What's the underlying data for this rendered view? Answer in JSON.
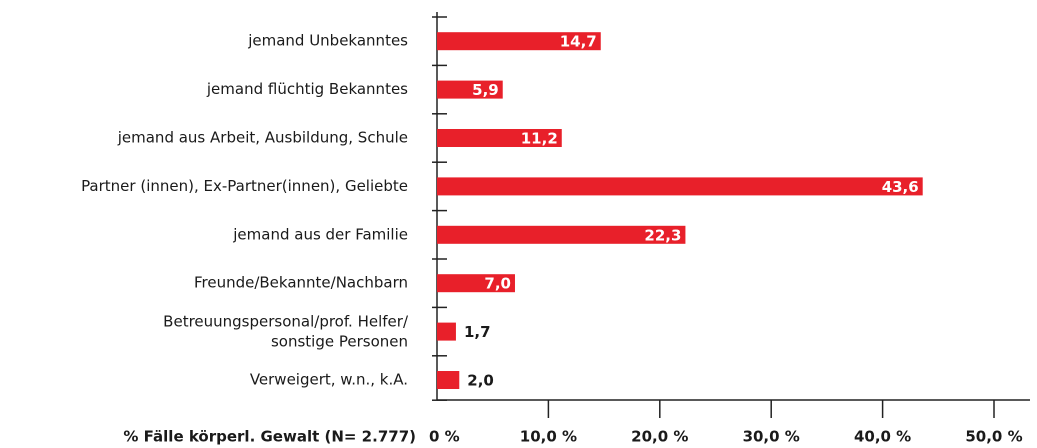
{
  "chart_data": {
    "type": "bar",
    "orientation": "horizontal",
    "x_label": "% Fälle körperl. Gewalt (N= 2.777)",
    "categories": [
      "jemand Unbekanntes",
      "jemand flüchtig Bekanntes",
      "jemand aus Arbeit, Ausbildung, Schule",
      "Partner (innen), Ex-Partner(innen), Geliebte",
      "jemand aus der Familie",
      "Freunde/Bekannte/Nachbarn",
      "Betreuungspersonal/prof. Helfer/\nsonstige Personen",
      "Verweigert, w.n., k.A."
    ],
    "values": [
      14.7,
      5.9,
      11.2,
      43.6,
      22.3,
      7.0,
      1.7,
      2.0
    ],
    "value_labels": [
      "14,7",
      "5,9",
      "11,2",
      "43,6",
      "22,3",
      "7,0",
      "1,7",
      "2,0"
    ],
    "color": "#e8202a",
    "xlim": [
      0,
      50
    ],
    "xticks": [
      {
        "value": 0,
        "label": "0 %"
      },
      {
        "value": 10,
        "label": "10,0 %"
      },
      {
        "value": 20,
        "label": "20,0 %"
      },
      {
        "value": 30,
        "label": "30,0 %"
      },
      {
        "value": 40,
        "label": "40,0 %"
      },
      {
        "value": 50,
        "label": "50,0 %"
      }
    ]
  }
}
